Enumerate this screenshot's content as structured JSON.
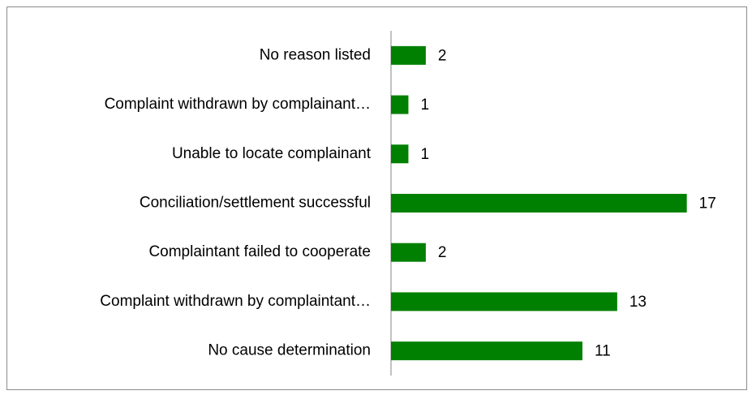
{
  "chart_data": {
    "type": "bar",
    "orientation": "horizontal",
    "categories": [
      "No reason listed",
      "Complaint withdrawn by complainant…",
      "Unable to locate complainant",
      "Conciliation/settlement successful",
      "Complaintant failed to cooperate",
      "Complaint withdrawn by complaintant…",
      "No cause determination"
    ],
    "values": [
      2,
      1,
      1,
      17,
      2,
      13,
      11
    ],
    "color": "#008000",
    "xlim": [
      0,
      20
    ]
  }
}
